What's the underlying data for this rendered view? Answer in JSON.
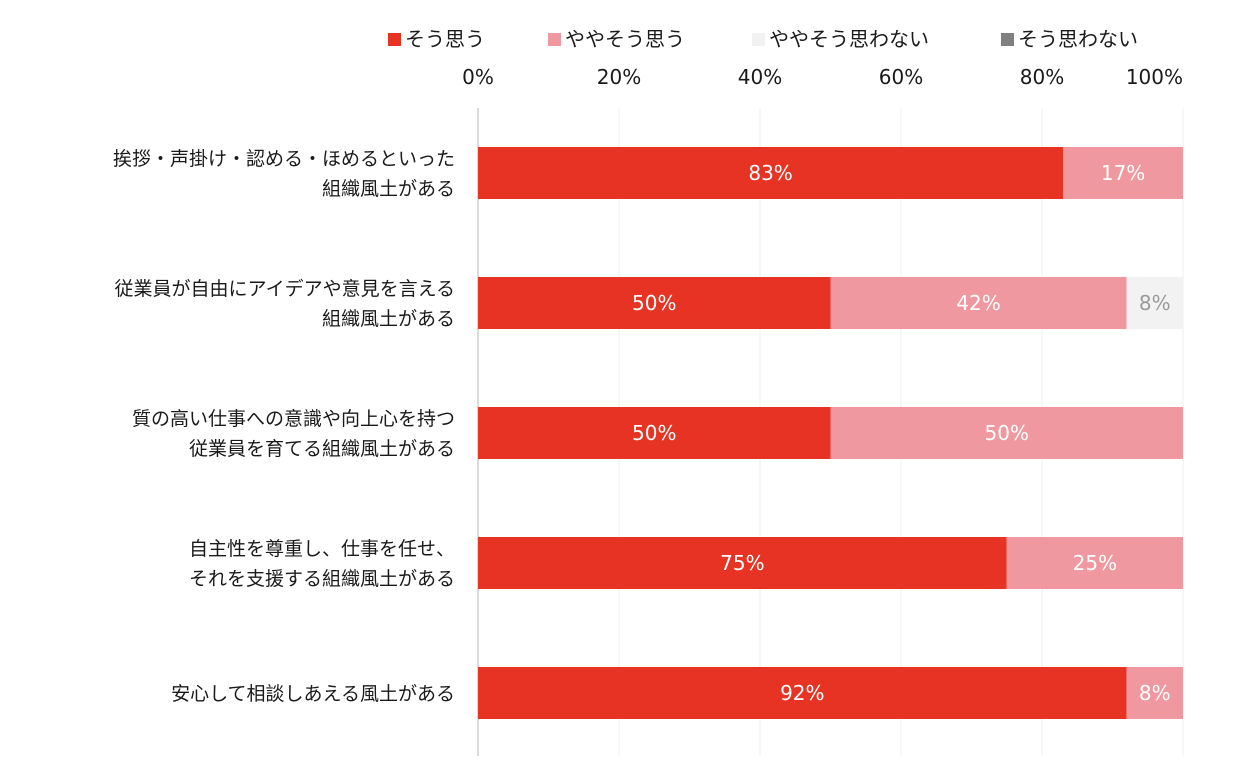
{
  "chart_data": {
    "type": "bar",
    "orientation": "horizontal",
    "stacked": true,
    "legend_position": "top",
    "grid": true,
    "xlim": [
      0,
      100
    ],
    "x_ticks": [
      "0%",
      "20%",
      "40%",
      "60%",
      "80%",
      "100%"
    ],
    "categories": [
      [
        "挨拶・声掛け・認める・ほめるといった",
        "組織風土がある"
      ],
      [
        "従業員が自由にアイデアや意見を言える",
        "組織風土がある"
      ],
      [
        "質の高い仕事への意識や向上心を持つ",
        "従業員を育てる組織風土がある"
      ],
      [
        "自主性を尊重し、仕事を任せ、",
        "それを支援する組織風土がある"
      ],
      [
        "安心して相談しあえる風土がある"
      ]
    ],
    "series": [
      {
        "name": "そう思う",
        "color": "#e63323",
        "label_color": "#ffffff",
        "values": [
          83,
          50,
          50,
          75,
          92
        ]
      },
      {
        "name": "ややそう思う",
        "color": "#f0989f",
        "label_color": "#ffffff",
        "values": [
          17,
          42,
          50,
          25,
          8
        ]
      },
      {
        "name": "ややそう思わない",
        "color": "#f2f2f2",
        "label_color": "#9a9a9a",
        "values": [
          0,
          8,
          0,
          0,
          0
        ]
      },
      {
        "name": "そう思わない",
        "color": "#808080",
        "label_color": "#ffffff",
        "values": [
          0,
          0,
          0,
          0,
          0
        ]
      }
    ]
  }
}
